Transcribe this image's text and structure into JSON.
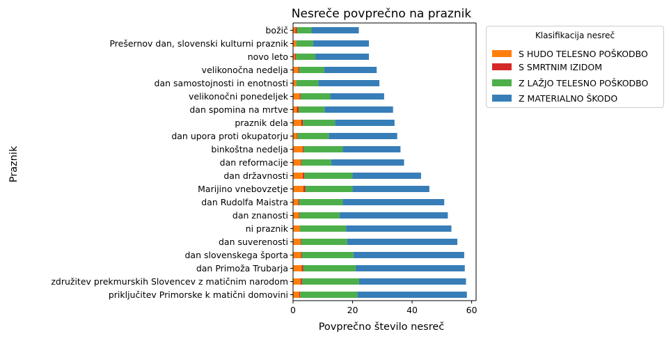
{
  "chart_data": {
    "type": "bar",
    "orientation": "horizontal",
    "stacked": true,
    "title": "Nesreče povprečno na praznik",
    "xlabel": "Povprečno število nesreč",
    "ylabel": "Praznik",
    "xlim": [
      0,
      61.5
    ],
    "xticks": [
      0,
      20,
      40,
      60
    ],
    "grid": false,
    "legend": {
      "title": "Klasifikacija nesreč",
      "placement": "upper-right-outside"
    },
    "categories": [
      "božič",
      "Prešernov dan, slovenski kulturni praznik",
      "novo leto",
      "velikonočna nedelja",
      "dan samostojnosti in enotnosti",
      "velikonočni ponedeljek",
      "dan spomina na mrtve",
      "praznik dela",
      "dan upora proti okupatorju",
      "binkoštna nedelja",
      "dan reformacije",
      "dan državnosti",
      "Marijino vnebovzetje",
      "dan Rudolfa Maistra",
      "dan znanosti",
      "ni praznik",
      "dan suverenosti",
      "dan slovenskega športa",
      "dan Primoža Trubarja",
      "združitev prekmurskih Slovencev z matičnim narodom",
      "priključitev Primorske k matični domovini"
    ],
    "series": [
      {
        "name": "S HUDO TELESNO POŠKODBO",
        "color": "#ff7f0e",
        "values": [
          0.8,
          1.0,
          0.7,
          1.7,
          1.0,
          2.2,
          1.3,
          2.8,
          1.3,
          3.2,
          2.6,
          3.3,
          3.5,
          1.7,
          1.9,
          2.2,
          2.5,
          2.6,
          2.9,
          2.5,
          2.1
        ]
      },
      {
        "name": "S SMRTNIM IZIDOM",
        "color": "#d62728",
        "values": [
          0.5,
          0.1,
          0.3,
          0.3,
          0.1,
          0.3,
          0.6,
          0.5,
          0.2,
          0.3,
          0.2,
          0.5,
          0.6,
          0.3,
          0.2,
          0.1,
          0.2,
          0.3,
          0.5,
          0.5,
          0.3
        ]
      },
      {
        "name": "Z LAŽJO TELESNO POŠKODBO",
        "color": "#4daf4a",
        "values": [
          4.9,
          5.6,
          6.5,
          8.5,
          7.4,
          10.0,
          8.7,
          10.8,
          10.5,
          13.2,
          10.0,
          16.2,
          15.9,
          14.7,
          13.5,
          15.5,
          15.5,
          17.4,
          17.6,
          19.2,
          19.2
        ]
      },
      {
        "name": "Z MATERIALNO ŠKODO",
        "color": "#377eb8",
        "values": [
          15.9,
          18.8,
          18.0,
          17.6,
          20.5,
          18.1,
          23.0,
          20.0,
          23.0,
          19.4,
          24.5,
          23.0,
          25.8,
          34.1,
          36.4,
          35.4,
          37.0,
          37.2,
          36.7,
          35.9,
          36.8
        ]
      }
    ]
  },
  "colors": {
    "axis": "#000000",
    "text": "#000000",
    "background": "#ffffff"
  }
}
